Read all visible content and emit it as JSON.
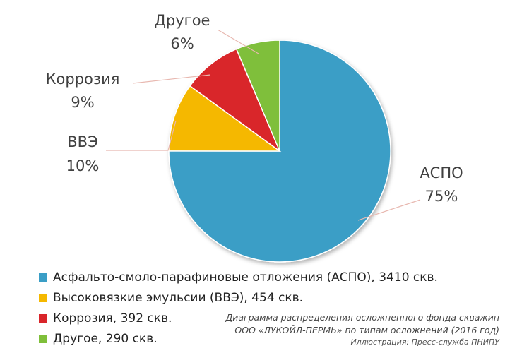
{
  "chart_data": {
    "type": "pie",
    "slices": [
      {
        "label": "АСПО",
        "percent_label": "75%",
        "value": 3410,
        "percent": 75,
        "color": "#3a9ec6",
        "legend": "Асфальто-смоло-парафиновые отложения (АСПО), 3410 скв."
      },
      {
        "label": "ВВЭ",
        "percent_label": "10%",
        "value": 454,
        "percent": 10,
        "color": "#f5b800",
        "legend": "Высоковязкие эмульсии (ВВЭ), 454 скв."
      },
      {
        "label": "Коррозия",
        "percent_label": "9%",
        "value": 392,
        "percent": 9,
        "color": "#d9252a",
        "legend": "Коррозия, 392 скв."
      },
      {
        "label": "Другое",
        "percent_label": "6%",
        "value": 290,
        "percent": 6,
        "color": "#7fbf3a",
        "legend": "Другое, 290 скв."
      }
    ],
    "legend_position": "bottom-left",
    "caption": {
      "line1": "Диаграмма распределения осложненного фонда скважин",
      "line2": "ООО «ЛУКОЙЛ-ПЕРМЬ» по типам осложнений (2016 год)",
      "credit": "Иллюстрация: Пресс-служба ПНИПУ"
    }
  }
}
